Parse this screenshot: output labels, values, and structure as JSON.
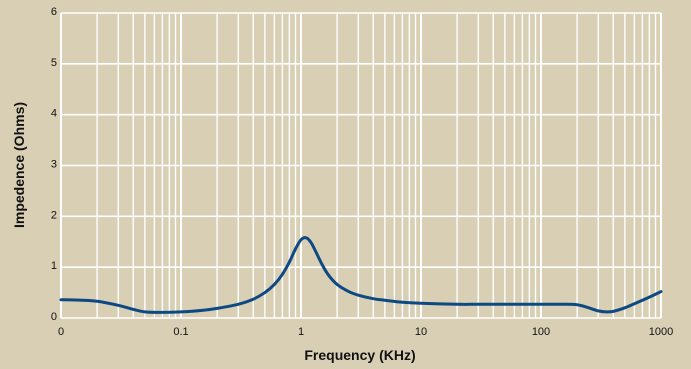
{
  "chart_data": {
    "type": "line",
    "title": "",
    "xlabel": "Frequency (KHz)",
    "ylabel": "Impedence (Ohms)",
    "x_scale": "log",
    "xlim": [
      0.01,
      1000
    ],
    "ylim": [
      0,
      6
    ],
    "x_ticks": [
      {
        "value": 0.01,
        "label": "0"
      },
      {
        "value": 0.1,
        "label": "0.1"
      },
      {
        "value": 1,
        "label": "1"
      },
      {
        "value": 10,
        "label": "10"
      },
      {
        "value": 100,
        "label": "100"
      },
      {
        "value": 1000,
        "label": "1000"
      }
    ],
    "y_ticks": [
      0,
      1,
      2,
      3,
      4,
      5,
      6
    ],
    "grid": true,
    "colors": {
      "background": "#d9cfb5",
      "plot_area": "#d9cfb5",
      "grid": "#ffffff",
      "line": "#0d4a84"
    },
    "series": [
      {
        "x": [
          0.01,
          0.015,
          0.02,
          0.03,
          0.04,
          0.05,
          0.07,
          0.1,
          0.15,
          0.2,
          0.3,
          0.4,
          0.5,
          0.6,
          0.7,
          0.8,
          0.9,
          1.0,
          1.1,
          1.2,
          1.3,
          1.5,
          1.7,
          2.0,
          2.5,
          3,
          4,
          5,
          7,
          10,
          20,
          30,
          50,
          70,
          100,
          150,
          200,
          250,
          300,
          350,
          400,
          500,
          600,
          700,
          800,
          1000
        ],
        "y": [
          0.36,
          0.35,
          0.33,
          0.25,
          0.17,
          0.12,
          0.11,
          0.12,
          0.15,
          0.19,
          0.27,
          0.37,
          0.5,
          0.66,
          0.86,
          1.1,
          1.36,
          1.54,
          1.58,
          1.5,
          1.35,
          1.05,
          0.84,
          0.66,
          0.52,
          0.45,
          0.38,
          0.35,
          0.31,
          0.29,
          0.27,
          0.27,
          0.27,
          0.27,
          0.27,
          0.27,
          0.26,
          0.2,
          0.14,
          0.12,
          0.13,
          0.2,
          0.28,
          0.35,
          0.41,
          0.52
        ]
      }
    ]
  }
}
